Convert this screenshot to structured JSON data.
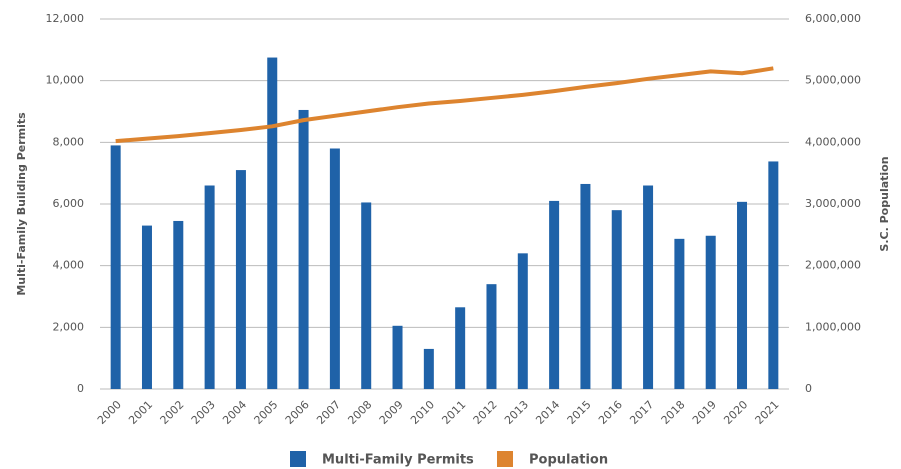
{
  "chart_data": {
    "type": "bar_line",
    "categories": [
      "2000",
      "2001",
      "2002",
      "2003",
      "2004",
      "2005",
      "2006",
      "2007",
      "2008",
      "2009",
      "2010",
      "2011",
      "2012",
      "2013",
      "2014",
      "2015",
      "2016",
      "2017",
      "2018",
      "2019",
      "2020",
      "2021"
    ],
    "y_label": "Multi-Family Building Permits",
    "y2_label": "S.C. Population",
    "series": [
      {
        "name": "Multi-Family Permits",
        "color": "#1f62a8",
        "type": "bar",
        "values": [
          7900,
          5300,
          5450,
          6600,
          7100,
          10750,
          9050,
          7800,
          6050,
          2050,
          1300,
          2650,
          3400,
          4400,
          6100,
          6650,
          5800,
          6600,
          4870,
          4970,
          6070,
          7380
        ]
      },
      {
        "name": "Population",
        "color": "#dd842f",
        "type": "line",
        "axis": "y2",
        "values": [
          4020000,
          4060000,
          4100000,
          4150000,
          4200000,
          4260000,
          4360000,
          4430000,
          4500000,
          4570000,
          4630000,
          4670000,
          4720000,
          4770000,
          4830000,
          4900000,
          4960000,
          5030000,
          5090000,
          5150000,
          5120000,
          5200000
        ]
      }
    ],
    "ylim": [
      0,
      12000
    ],
    "yticks": [
      0,
      {
        "value": 2000,
        "label": "2,000"
      },
      {
        "value": 4000,
        "label": "4,000"
      },
      {
        "value": 6000,
        "label": "6,000"
      },
      {
        "value": 8000,
        "label": "8,000"
      },
      {
        "value": 10000,
        "label": "10,000"
      },
      {
        "value": 12000,
        "label": "12,000"
      }
    ],
    "y2lim": [
      0,
      6000000
    ],
    "y2ticks": [
      0,
      {
        "value": 1000000,
        "label": "1,000,000"
      },
      {
        "value": 2000000,
        "label": "2,000,000"
      },
      {
        "value": 3000000,
        "label": "3,000,000"
      },
      {
        "value": 4000000,
        "label": "4,000,000"
      },
      {
        "value": 5000000,
        "label": "5,000,000"
      },
      {
        "value": 6000000,
        "label": "6,000,000"
      }
    ],
    "grid": true,
    "legend": "bottom"
  }
}
